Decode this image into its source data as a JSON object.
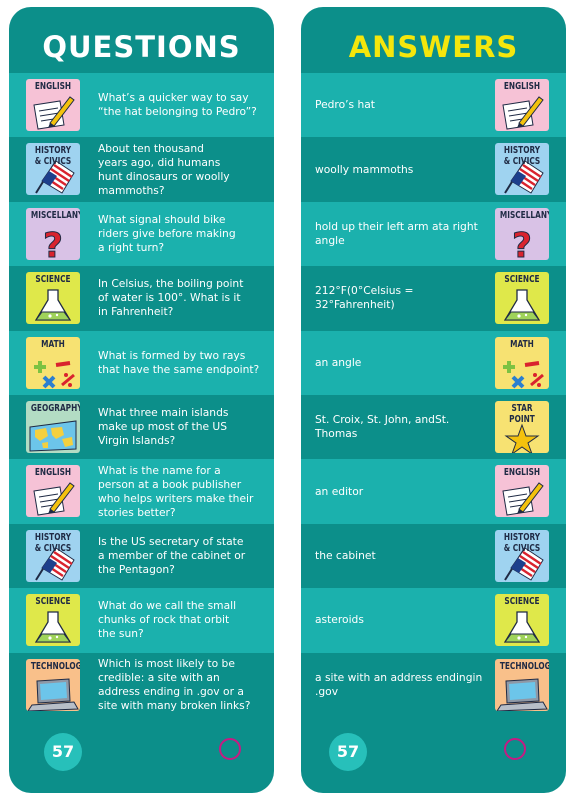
{
  "questions_title": "QUESTIONS",
  "answers_title": "ANSWERS",
  "page_number": "57",
  "questions": [
    {
      "category": "ENGLISH",
      "icon": "english-pencil-icon",
      "color": "#f6c2d6",
      "lines": [
        "What’s a quicker way to say",
        "“the hat belonging to Pedro”?"
      ]
    },
    {
      "category": "HISTORY\n& CIVICS",
      "icon": "us-flag-icon",
      "color": "#9fd3f0",
      "lines": [
        "About ten thousand",
        "years ago, did humans",
        "hunt dinosaurs or woolly",
        "mammoths?"
      ]
    },
    {
      "category": "MISCELLANY",
      "icon": "question-mark-icon",
      "color": "#d9c2e6",
      "lines": [
        "What signal should bike",
        "riders give before making",
        "a right turn?"
      ]
    },
    {
      "category": "SCIENCE",
      "icon": "flask-icon",
      "color": "#dfe84a",
      "lines": [
        "In Celsius, the boiling point",
        "of water is 100°. What is it",
        "in Fahrenheit?"
      ]
    },
    {
      "category": "MATH",
      "icon": "math-symbols-icon",
      "color": "#f7e272",
      "lines": [
        "What is formed by two rays",
        "that have the same endpoint?"
      ]
    },
    {
      "category": "GEOGRAPHY",
      "icon": "world-map-icon",
      "color": "#b3dcc4",
      "lines": [
        "What three main islands",
        "make up most of the US",
        "Virgin Islands?"
      ]
    },
    {
      "category": "ENGLISH",
      "icon": "english-pencil-icon",
      "color": "#f6c2d6",
      "lines": [
        "What is the name for a",
        "person at a book publisher",
        "who helps writers make their",
        "stories better?"
      ]
    },
    {
      "category": "HISTORY\n& CIVICS",
      "icon": "us-flag-icon",
      "color": "#9fd3f0",
      "lines": [
        "Is the US secretary of state",
        "a member of the cabinet or",
        "the Pentagon?"
      ]
    },
    {
      "category": "SCIENCE",
      "icon": "flask-icon",
      "color": "#dfe84a",
      "lines": [
        "What do we call the small",
        "chunks of rock that orbit",
        "the sun?"
      ]
    },
    {
      "category": "TECHNOLOGY",
      "icon": "laptop-icon",
      "color": "#f9c08a",
      "lines": [
        "Which is most likely to be",
        "credible: a site with an",
        "address ending in .gov or a",
        "site with many broken links?"
      ]
    }
  ],
  "answers": [
    {
      "category": "ENGLISH",
      "icon": "english-pencil-icon",
      "color": "#f6c2d6",
      "lines": [
        "Pedro’s hat"
      ]
    },
    {
      "category": "HISTORY\n& CIVICS",
      "icon": "us-flag-icon",
      "color": "#9fd3f0",
      "lines": [
        "woolly mammoths"
      ]
    },
    {
      "category": "MISCELLANY",
      "icon": "question-mark-icon",
      "color": "#d9c2e6",
      "lines": [
        "hold up their left arm at",
        "a right angle"
      ]
    },
    {
      "category": "SCIENCE",
      "icon": "flask-icon",
      "color": "#dfe84a",
      "lines": [
        "212°F",
        "(0°Celsius = 32°Fahrenheit)"
      ]
    },
    {
      "category": "MATH",
      "icon": "math-symbols-icon",
      "color": "#f7e272",
      "lines": [
        "an angle"
      ]
    },
    {
      "category": "STAR\nPOINT",
      "icon": "star-icon",
      "color": "#f7e272",
      "lines": [
        "St. Croix, St. John, and",
        "St. Thomas"
      ]
    },
    {
      "category": "ENGLISH",
      "icon": "english-pencil-icon",
      "color": "#f6c2d6",
      "lines": [
        "an editor"
      ]
    },
    {
      "category": "HISTORY\n& CIVICS",
      "icon": "us-flag-icon",
      "color": "#9fd3f0",
      "lines": [
        "the cabinet"
      ]
    },
    {
      "category": "SCIENCE",
      "icon": "flask-icon",
      "color": "#dfe84a",
      "lines": [
        "asteroids"
      ]
    },
    {
      "category": "TECHNOLOGY",
      "icon": "laptop-icon",
      "color": "#f9c08a",
      "lines": [
        "a site with an address ending",
        "in .gov"
      ]
    }
  ]
}
